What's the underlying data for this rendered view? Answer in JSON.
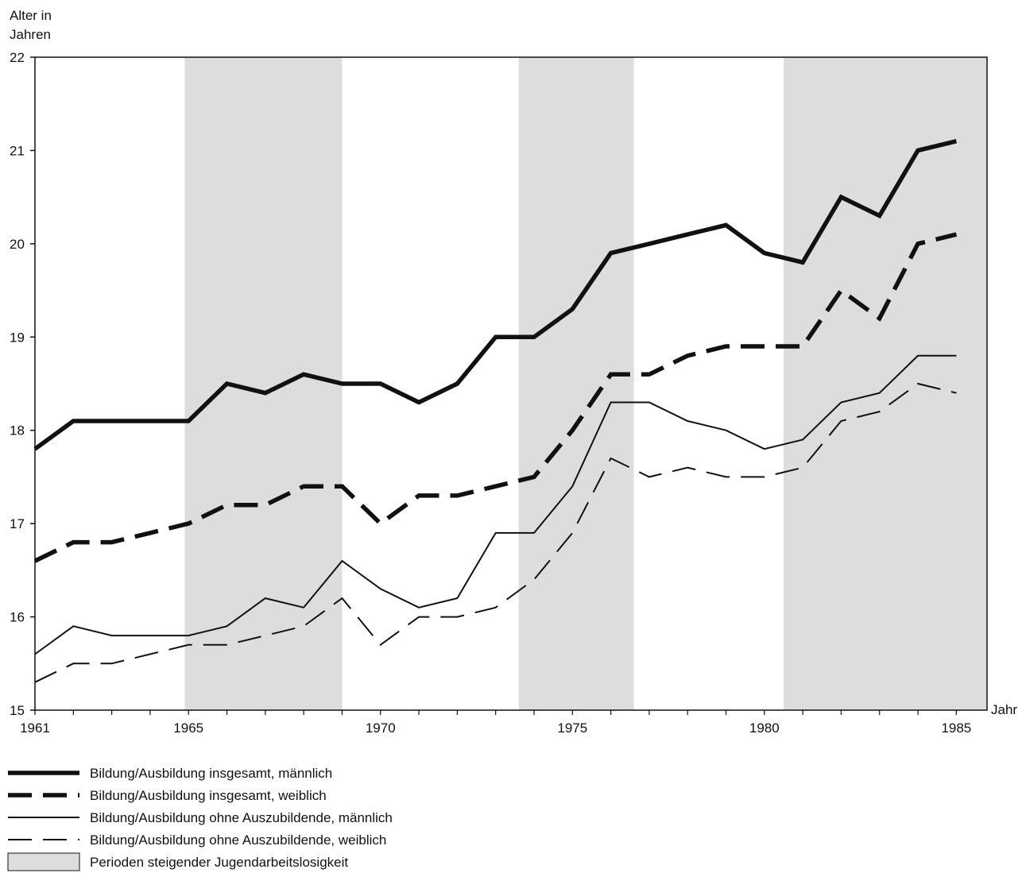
{
  "chart_data": {
    "type": "line",
    "ylabel_line1": "Alter in",
    "ylabel_line2": "Jahren",
    "xlabel": "Jahr",
    "xlim": [
      1961,
      1985.8
    ],
    "ylim": [
      15,
      22
    ],
    "x_tick_labels": [
      {
        "value": 1961,
        "label": "1961"
      },
      {
        "value": 1965,
        "label": "1965"
      },
      {
        "value": 1970,
        "label": "1970"
      },
      {
        "value": 1975,
        "label": "1975"
      },
      {
        "value": 1980,
        "label": "1980"
      },
      {
        "value": 1985,
        "label": "1985"
      }
    ],
    "y_ticks": [
      15,
      16,
      17,
      18,
      19,
      20,
      21,
      22
    ],
    "y_tick_labels": [
      "15",
      "16",
      "17",
      "18",
      "19",
      "20",
      "21",
      "22"
    ],
    "grid": false,
    "shaded_periods": [
      {
        "start": 1964.9,
        "end": 1969.0
      },
      {
        "start": 1973.6,
        "end": 1976.6
      },
      {
        "start": 1980.5,
        "end": 1985.8
      }
    ],
    "x": [
      1961,
      1962,
      1963,
      1964,
      1965,
      1966,
      1967,
      1968,
      1969,
      1970,
      1971,
      1972,
      1973,
      1974,
      1975,
      1976,
      1977,
      1978,
      1979,
      1980,
      1981,
      1982,
      1983,
      1984,
      1985
    ],
    "series": [
      {
        "name": "Bildung/Ausbildung insgesamt, männlich",
        "style": "thick-solid",
        "values": [
          17.8,
          18.1,
          18.1,
          18.1,
          18.1,
          18.5,
          18.4,
          18.6,
          18.5,
          18.5,
          18.3,
          18.5,
          19.0,
          19.0,
          19.3,
          19.9,
          20.0,
          20.1,
          20.2,
          19.9,
          19.8,
          20.5,
          20.3,
          21.0,
          21.1
        ]
      },
      {
        "name": "Bildung/Ausbildung insgesamt, weiblich",
        "style": "thick-dashed",
        "values": [
          16.6,
          16.8,
          16.8,
          16.9,
          17.0,
          17.2,
          17.2,
          17.4,
          17.4,
          17.0,
          17.3,
          17.3,
          17.4,
          17.5,
          18.0,
          18.6,
          18.6,
          18.8,
          18.9,
          18.9,
          18.9,
          19.5,
          19.2,
          20.0,
          20.1
        ]
      },
      {
        "name": "Bildung/Ausbildung ohne Auszubildende, männlich",
        "style": "thin-solid",
        "values": [
          15.6,
          15.9,
          15.8,
          15.8,
          15.8,
          15.9,
          16.2,
          16.1,
          16.6,
          16.3,
          16.1,
          16.2,
          16.9,
          16.9,
          17.4,
          18.3,
          18.3,
          18.1,
          18.0,
          17.8,
          17.9,
          18.3,
          18.4,
          18.8,
          18.8
        ]
      },
      {
        "name": "Bildung/Ausbildung ohne Auszubildende, weiblich",
        "style": "thin-dashed",
        "values": [
          15.3,
          15.5,
          15.5,
          15.6,
          15.7,
          15.7,
          15.8,
          15.9,
          16.2,
          15.7,
          16.0,
          16.0,
          16.1,
          16.4,
          16.9,
          17.7,
          17.5,
          17.6,
          17.5,
          17.5,
          17.6,
          18.1,
          18.2,
          18.5,
          18.4
        ]
      }
    ],
    "legend": {
      "placement": "bottom-left",
      "entries": [
        {
          "label": "Bildung/Ausbildung insgesamt, männlich",
          "style": "thick-solid"
        },
        {
          "label": "Bildung/Ausbildung insgesamt, weiblich",
          "style": "thick-dashed"
        },
        {
          "label": "Bildung/Ausbildung ohne Auszubildende, männlich",
          "style": "thin-solid"
        },
        {
          "label": "Bildung/Ausbildung ohne Auszubildende, weiblich",
          "style": "thin-dashed"
        },
        {
          "label": "Perioden steigender Jugendarbeitslosigkeit",
          "style": "shaded-box"
        }
      ]
    },
    "colors": {
      "line": "#111111",
      "shade": "#dddddd",
      "axis": "#111111"
    }
  }
}
